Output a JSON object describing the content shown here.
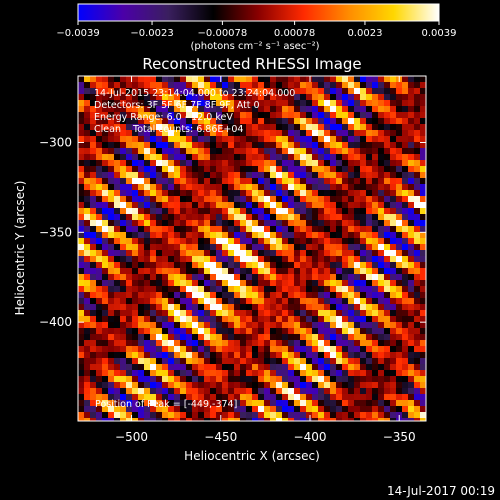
{
  "chart_data": {
    "type": "heatmap",
    "title": "Reconstructed RHESSI Image",
    "xlabel": "Heliocentric X (arcsec)",
    "ylabel": "Heliocentric Y (arcsec)",
    "xlim": [
      -530,
      -335
    ],
    "ylim": [
      -455,
      -263
    ],
    "x_ticks": [
      -500,
      -450,
      -400,
      -350
    ],
    "y_ticks": [
      -300,
      -350,
      -400
    ],
    "x_tick_labels": [
      "−500",
      "−450",
      "−400",
      "−350"
    ],
    "y_tick_labels": [
      "−300",
      "−350",
      "−400"
    ],
    "colorbar": {
      "min": -0.0039,
      "max": 0.0039,
      "tick_values": [
        -0.0039,
        -0.0023,
        -0.00078,
        0.00078,
        0.0023,
        0.0039
      ],
      "tick_labels": [
        "−0.0039",
        "−0.0023",
        "−0.00078",
        "0.00078",
        "0.0023",
        "0.0039"
      ],
      "units_label": "(photons cm⁻² s⁻¹ asec⁻²)",
      "colormap": [
        "#0000ff",
        "#4b00a8",
        "#3a1f5f",
        "#000000",
        "#8a0000",
        "#ff2a00",
        "#ff8c00",
        "#ffd700",
        "#ffffff"
      ]
    },
    "annotations": [
      "14-Jul-2015 23:14:04.000 to 23:24:04.000",
      "Detectors: 3F 5F 6F 7F 8F 9F, Att 0",
      "Energy Range: 6.0 - 12.0 keV",
      "Clean    Total counts: 6.86E+04"
    ],
    "peak_label": "Position of Peak = [-449,-374]",
    "peak": [
      -449,
      -374
    ],
    "pattern": {
      "stripe_angle_deg": -35,
      "stripe_period_arcsec": 16,
      "description": "diagonal alternating positive/negative stripes"
    }
  },
  "footer": {
    "timestamp": "14-Jul-2017 00:19"
  }
}
